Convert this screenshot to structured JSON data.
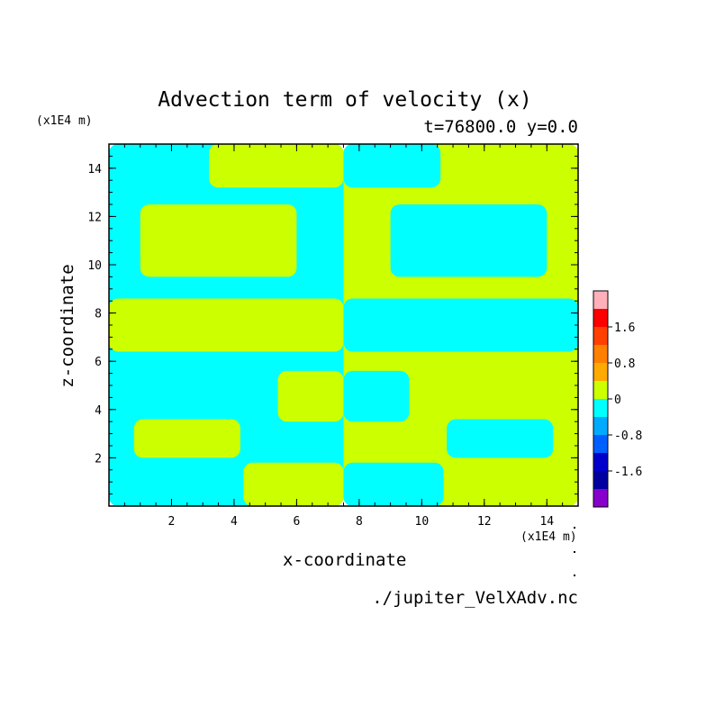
{
  "chart_data": {
    "type": "heatmap",
    "title": "Advection term of velocity (x)",
    "subtitle": "t=76800.0 y=0.0",
    "xlabel": "x-coordinate",
    "ylabel": "z-coordinate",
    "x_unit": "(x1E4 m)",
    "y_unit": "(x1E4 m)",
    "xlim": [
      0,
      15
    ],
    "ylim": [
      0,
      15
    ],
    "x_ticks": [
      2,
      4,
      6,
      8,
      10,
      12,
      14
    ],
    "y_ticks": [
      2,
      4,
      6,
      8,
      10,
      12,
      14
    ],
    "colorbar": {
      "ticks": [
        "1.6",
        "0.8",
        "0",
        "-0.8",
        "-1.6"
      ],
      "levels": [
        {
          "range": "> 2.0",
          "color": "#ffb0b8"
        },
        {
          "range": "1.6 to 2.0",
          "color": "#ff0000"
        },
        {
          "range": "1.2 to 1.6",
          "color": "#ff4000"
        },
        {
          "range": "0.8 to 1.2",
          "color": "#ff8000"
        },
        {
          "range": "0.4 to 0.8",
          "color": "#ffaa00"
        },
        {
          "range": "0 to 0.4",
          "color": "#ccff00"
        },
        {
          "range": "-0.4 to 0",
          "color": "#00ffff"
        },
        {
          "range": "-0.8 to -0.4",
          "color": "#00aaff"
        },
        {
          "range": "-1.2 to -0.8",
          "color": "#0060ff"
        },
        {
          "range": "-1.6 to -1.2",
          "color": "#0000cc"
        },
        {
          "range": "-2.0 to -1.6",
          "color": "#0000a0"
        },
        {
          "range": "< -2.0",
          "color": "#8800cc"
        }
      ]
    },
    "field_colors": {
      "positive": "#ccff00",
      "negative": "#00ffff"
    },
    "approx_regions": [
      {
        "sign": "negative",
        "x": [
          0,
          7.5
        ],
        "z": [
          0,
          15
        ]
      },
      {
        "sign": "positive",
        "x": [
          7.5,
          15
        ],
        "z": [
          0,
          15
        ]
      },
      {
        "sign": "positive",
        "x": [
          3.2,
          7.5
        ],
        "z": [
          13.2,
          15
        ]
      },
      {
        "sign": "negative",
        "x": [
          7.5,
          10.6
        ],
        "z": [
          13.2,
          15
        ]
      },
      {
        "sign": "positive",
        "x": [
          0,
          7.5
        ],
        "z": [
          6.4,
          8.6
        ]
      },
      {
        "sign": "negative",
        "x": [
          7.5,
          15
        ],
        "z": [
          6.4,
          8.6
        ]
      },
      {
        "sign": "positive",
        "x": [
          1,
          6
        ],
        "z": [
          9.5,
          12.5
        ]
      },
      {
        "sign": "negative",
        "x": [
          9,
          14
        ],
        "z": [
          9.5,
          12.5
        ]
      },
      {
        "sign": "positive",
        "x": [
          0.8,
          4.2
        ],
        "z": [
          2,
          3.6
        ]
      },
      {
        "sign": "negative",
        "x": [
          10.8,
          14.2
        ],
        "z": [
          2,
          3.6
        ]
      },
      {
        "sign": "positive",
        "x": [
          4.3,
          7.5
        ],
        "z": [
          0,
          1.8
        ]
      },
      {
        "sign": "negative",
        "x": [
          7.5,
          10.7
        ],
        "z": [
          0,
          1.8
        ]
      },
      {
        "sign": "positive",
        "x": [
          5.4,
          7.5
        ],
        "z": [
          3.5,
          5.6
        ]
      },
      {
        "sign": "negative",
        "x": [
          7.5,
          9.6
        ],
        "z": [
          3.5,
          5.6
        ]
      }
    ]
  },
  "footer": {
    "source": "./jupiter_VelXAdv.nc"
  }
}
